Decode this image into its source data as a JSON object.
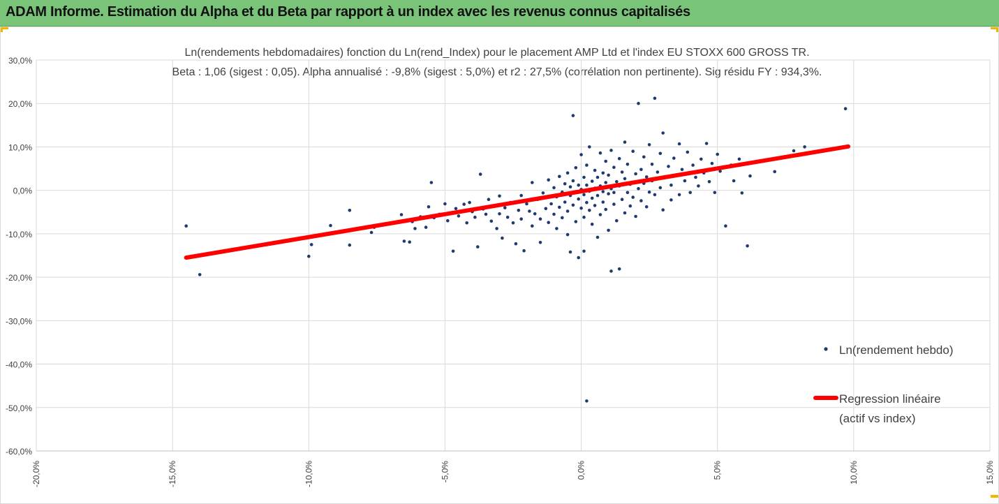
{
  "header": {
    "title": "ADAM Informe. Estimation du Alpha et du Beta par rapport à un index avec les revenus connus capitalisés"
  },
  "colors": {
    "header_bg": "#7ac47a",
    "corner_accent": "#f2b600",
    "points": "#1f3a6e",
    "regression": "#ff0000",
    "grid": "#d9d9d9",
    "text": "#404040"
  },
  "chart_data": {
    "type": "scatter",
    "title": "Ln(rendements hebdomadaires) fonction du Ln(rend_Index) pour le placement AMP Ltd et l'index EU STOXX 600 GROSS TR.",
    "subtitle": "Beta : 1,06 (sigest : 0,05). Alpha annualisé : -9,8% (sigest : 5,0%) et r2 : 27,5% (corrélation non pertinente). Sig résidu FY : 934,3%.",
    "xlim": [
      -0.2,
      0.15
    ],
    "ylim": [
      -0.6,
      0.3
    ],
    "x_ticks": [
      -0.2,
      -0.15,
      -0.1,
      -0.05,
      0.0,
      0.05,
      0.1,
      0.15
    ],
    "y_ticks": [
      0.3,
      0.2,
      0.1,
      0.0,
      -0.1,
      -0.2,
      -0.3,
      -0.4,
      -0.5,
      -0.6
    ],
    "x_tick_labels": [
      "-20,0%",
      "-15,0%",
      "-10,0%",
      "-5,0%",
      "0,0%",
      "5,0%",
      "10,0%",
      "15,0%"
    ],
    "y_tick_labels": [
      "30,0%",
      "20,0%",
      "10,0%",
      "0,0%",
      "-10,0%",
      "-20,0%",
      "-30,0%",
      "-40,0%",
      "-50,0%",
      "-60,0%"
    ],
    "grid": true,
    "legend_position": "right",
    "series": [
      {
        "name": "Ln(rendement hebdo)",
        "kind": "scatter",
        "points": [
          [
            -0.145,
            -0.082
          ],
          [
            -0.14,
            -0.194
          ],
          [
            -0.1,
            -0.152
          ],
          [
            -0.099,
            -0.125
          ],
          [
            -0.092,
            -0.081
          ],
          [
            -0.085,
            -0.126
          ],
          [
            -0.085,
            -0.046
          ],
          [
            -0.077,
            -0.097
          ],
          [
            -0.076,
            -0.085
          ],
          [
            -0.072,
            -0.078
          ],
          [
            -0.066,
            -0.056
          ],
          [
            -0.065,
            -0.117
          ],
          [
            -0.063,
            -0.119
          ],
          [
            -0.062,
            -0.072
          ],
          [
            -0.061,
            -0.088
          ],
          [
            -0.059,
            -0.061
          ],
          [
            -0.057,
            -0.085
          ],
          [
            -0.056,
            -0.038
          ],
          [
            -0.055,
            0.018
          ],
          [
            -0.054,
            -0.063
          ],
          [
            -0.052,
            -0.055
          ],
          [
            -0.05,
            -0.031
          ],
          [
            -0.049,
            -0.07
          ],
          [
            -0.047,
            -0.14
          ],
          [
            -0.046,
            -0.042
          ],
          [
            -0.045,
            -0.059
          ],
          [
            -0.044,
            -0.05
          ],
          [
            -0.043,
            -0.032
          ],
          [
            -0.042,
            -0.075
          ],
          [
            -0.041,
            -0.028
          ],
          [
            -0.04,
            -0.049
          ],
          [
            -0.039,
            -0.062
          ],
          [
            -0.038,
            -0.13
          ],
          [
            -0.037,
            0.037
          ],
          [
            -0.036,
            -0.043
          ],
          [
            -0.035,
            -0.055
          ],
          [
            -0.034,
            -0.021
          ],
          [
            -0.033,
            -0.071
          ],
          [
            -0.032,
            -0.035
          ],
          [
            -0.031,
            -0.088
          ],
          [
            -0.03,
            -0.054
          ],
          [
            -0.03,
            -0.013
          ],
          [
            -0.029,
            -0.11
          ],
          [
            -0.028,
            -0.04
          ],
          [
            -0.027,
            -0.062
          ],
          [
            -0.026,
            -0.028
          ],
          [
            -0.025,
            -0.075
          ],
          [
            -0.024,
            -0.123
          ],
          [
            -0.023,
            -0.046
          ],
          [
            -0.022,
            -0.012
          ],
          [
            -0.022,
            -0.066
          ],
          [
            -0.021,
            -0.139
          ],
          [
            -0.02,
            -0.031
          ],
          [
            -0.019,
            -0.048
          ],
          [
            -0.018,
            -0.082
          ],
          [
            -0.018,
            0.018
          ],
          [
            -0.017,
            -0.054
          ],
          [
            -0.016,
            -0.021
          ],
          [
            -0.015,
            -0.066
          ],
          [
            -0.015,
            -0.12
          ],
          [
            -0.014,
            -0.006
          ],
          [
            -0.013,
            -0.042
          ],
          [
            -0.012,
            -0.074
          ],
          [
            -0.012,
            0.024
          ],
          [
            -0.011,
            -0.031
          ],
          [
            -0.01,
            -0.055
          ],
          [
            -0.01,
            0.006
          ],
          [
            -0.009,
            -0.088
          ],
          [
            -0.009,
            -0.015
          ],
          [
            -0.008,
            -0.039
          ],
          [
            -0.008,
            0.032
          ],
          [
            -0.007,
            -0.063
          ],
          [
            -0.007,
            -0.004
          ],
          [
            -0.006,
            -0.027
          ],
          [
            -0.006,
            0.015
          ],
          [
            -0.005,
            -0.048
          ],
          [
            -0.005,
            0.04
          ],
          [
            -0.005,
            -0.102
          ],
          [
            -0.004,
            -0.012
          ],
          [
            -0.004,
            0.008
          ],
          [
            -0.004,
            -0.142
          ],
          [
            -0.003,
            -0.034
          ],
          [
            -0.003,
            0.172
          ],
          [
            -0.003,
            0.022
          ],
          [
            -0.002,
            -0.072
          ],
          [
            -0.002,
            -0.003
          ],
          [
            -0.002,
            0.052
          ],
          [
            -0.001,
            -0.02
          ],
          [
            -0.001,
            -0.155
          ],
          [
            -0.001,
            0.012
          ],
          [
            0.0,
            -0.041
          ],
          [
            0.0,
            0.002
          ],
          [
            0.0,
            0.082
          ],
          [
            0.001,
            -0.062
          ],
          [
            0.001,
            -0.01
          ],
          [
            0.001,
            0.03
          ],
          [
            0.001,
            -0.14
          ],
          [
            0.002,
            -0.028
          ],
          [
            0.002,
            0.012
          ],
          [
            0.002,
            0.058
          ],
          [
            0.002,
            -0.485
          ],
          [
            0.003,
            -0.046
          ],
          [
            0.003,
            -0.002
          ],
          [
            0.003,
            0.1
          ],
          [
            0.004,
            -0.018
          ],
          [
            0.004,
            0.021
          ],
          [
            0.004,
            -0.078
          ],
          [
            0.005,
            0.005
          ],
          [
            0.005,
            0.046
          ],
          [
            0.005,
            -0.035
          ],
          [
            0.006,
            -0.108
          ],
          [
            0.006,
            -0.012
          ],
          [
            0.006,
            0.03
          ],
          [
            0.007,
            0.086
          ],
          [
            0.007,
            -0.056
          ],
          [
            0.007,
            0.01
          ],
          [
            0.008,
            -0.027
          ],
          [
            0.008,
            0.04
          ],
          [
            0.008,
            -0.003
          ],
          [
            0.009,
            0.067
          ],
          [
            0.009,
            -0.044
          ],
          [
            0.009,
            0.018
          ],
          [
            0.01,
            -0.092
          ],
          [
            0.01,
            -0.008
          ],
          [
            0.01,
            0.035
          ],
          [
            0.011,
            0.092
          ],
          [
            0.011,
            -0.186
          ],
          [
            0.011,
            0.004
          ],
          [
            0.012,
            -0.032
          ],
          [
            0.012,
            0.053
          ],
          [
            0.012,
            -0.005
          ],
          [
            0.013,
            0.02
          ],
          [
            0.013,
            -0.07
          ],
          [
            0.014,
            -0.181
          ],
          [
            0.014,
            0.073
          ],
          [
            0.014,
            0.01
          ],
          [
            0.015,
            -0.021
          ],
          [
            0.015,
            0.042
          ],
          [
            0.016,
            -0.052
          ],
          [
            0.016,
            0.027
          ],
          [
            0.016,
            0.111
          ],
          [
            0.017,
            -0.005
          ],
          [
            0.017,
            0.06
          ],
          [
            0.018,
            -0.036
          ],
          [
            0.018,
            0.014
          ],
          [
            0.019,
            0.09
          ],
          [
            0.019,
            -0.016
          ],
          [
            0.02,
            0.038
          ],
          [
            0.02,
            -0.06
          ],
          [
            0.021,
            0.004
          ],
          [
            0.021,
            0.2
          ],
          [
            0.022,
            0.048
          ],
          [
            0.022,
            -0.024
          ],
          [
            0.023,
            0.077
          ],
          [
            0.023,
            0.016
          ],
          [
            0.024,
            -0.038
          ],
          [
            0.024,
            0.031
          ],
          [
            0.025,
            0.105
          ],
          [
            0.025,
            -0.004
          ],
          [
            0.026,
            0.06
          ],
          [
            0.026,
            0.022
          ],
          [
            0.027,
            0.212
          ],
          [
            0.027,
            -0.01
          ],
          [
            0.028,
            0.042
          ],
          [
            0.029,
            0.085
          ],
          [
            0.029,
            0.006
          ],
          [
            0.03,
            -0.045
          ],
          [
            0.03,
            0.132
          ],
          [
            0.031,
            0.03
          ],
          [
            0.032,
            0.055
          ],
          [
            0.033,
            -0.022
          ],
          [
            0.033,
            0.012
          ],
          [
            0.034,
            0.074
          ],
          [
            0.035,
            0.036
          ],
          [
            0.036,
            0.107
          ],
          [
            0.036,
            -0.01
          ],
          [
            0.037,
            0.048
          ],
          [
            0.038,
            0.022
          ],
          [
            0.039,
            0.088
          ],
          [
            0.04,
            -0.005
          ],
          [
            0.041,
            0.058
          ],
          [
            0.042,
            0.03
          ],
          [
            0.043,
            0.01
          ],
          [
            0.044,
            0.072
          ],
          [
            0.045,
            0.04
          ],
          [
            0.046,
            0.108
          ],
          [
            0.047,
            0.02
          ],
          [
            0.048,
            0.062
          ],
          [
            0.049,
            -0.005
          ],
          [
            0.05,
            0.083
          ],
          [
            0.051,
            0.044
          ],
          [
            0.053,
            -0.082
          ],
          [
            0.055,
            0.058
          ],
          [
            0.056,
            0.022
          ],
          [
            0.058,
            0.072
          ],
          [
            0.059,
            -0.006
          ],
          [
            0.061,
            -0.128
          ],
          [
            0.062,
            0.033
          ],
          [
            0.071,
            0.043
          ],
          [
            0.078,
            0.091
          ],
          [
            0.082,
            0.1
          ],
          [
            0.097,
            0.188
          ]
        ]
      },
      {
        "name": "Regression linéaire\n(actif vs index)",
        "kind": "line",
        "points": [
          [
            -0.145,
            -0.155
          ],
          [
            0.098,
            0.101
          ]
        ]
      }
    ],
    "legend": {
      "scatter_label": "Ln(rendement hebdo)",
      "line_label_1": "Regression linéaire",
      "line_label_2": "(actif vs index)"
    }
  }
}
